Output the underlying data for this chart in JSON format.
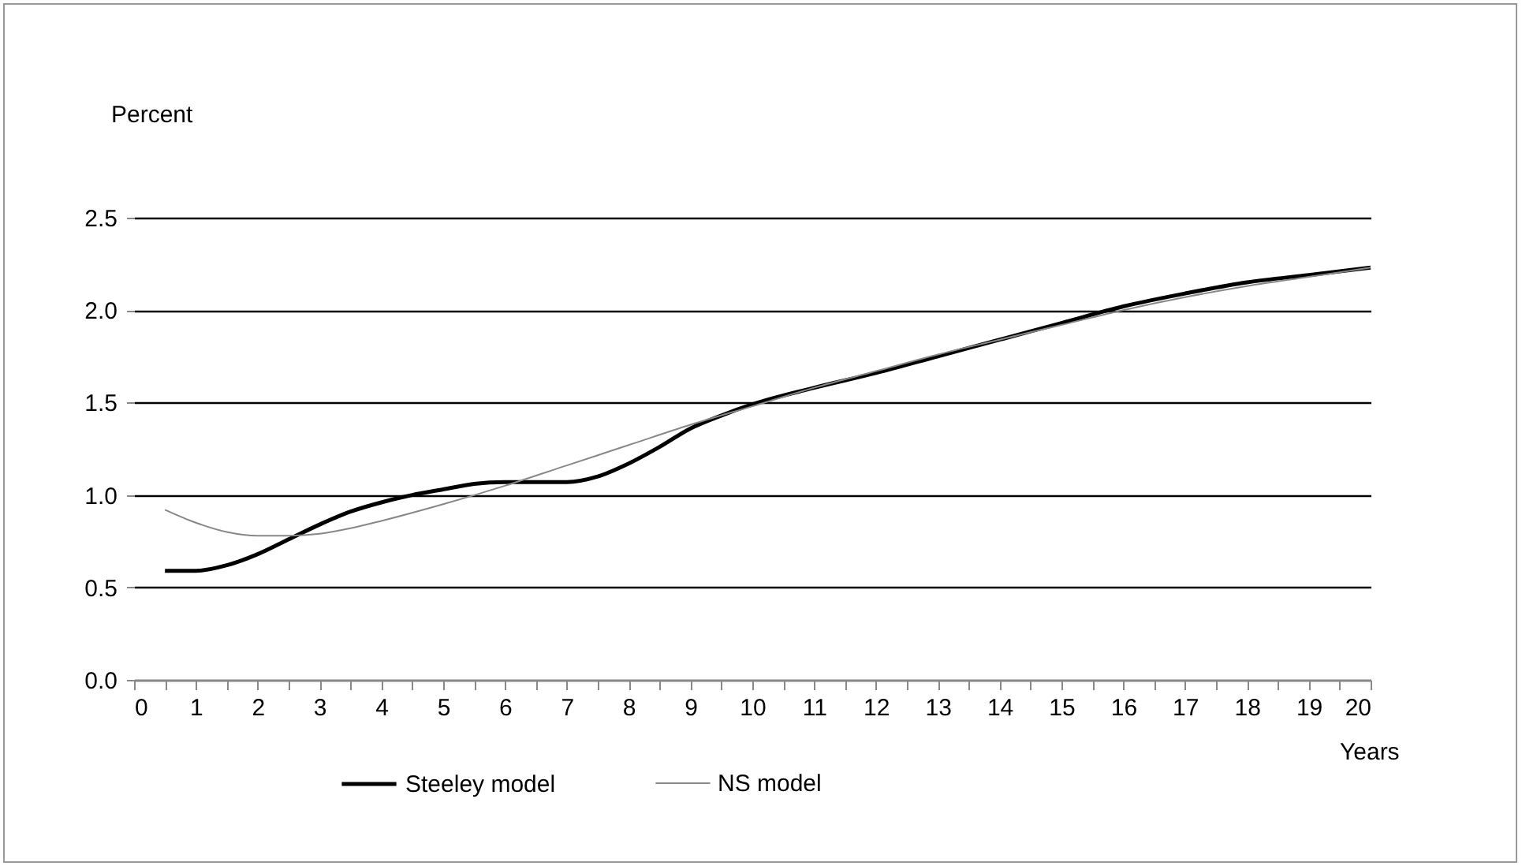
{
  "chart_data": {
    "type": "line",
    "ylabel": "Percent",
    "xlabel": "Years",
    "series": [
      {
        "name": "Steeley model",
        "color": "#000000",
        "x": [
          0.5,
          1,
          1.5,
          2,
          2.5,
          3,
          3.5,
          4,
          4.5,
          5,
          5.5,
          6,
          6.5,
          7,
          7.5,
          8,
          8.5,
          9,
          9.5,
          10,
          11,
          12,
          13,
          14,
          15,
          16,
          17,
          18,
          19,
          20
        ],
        "values": [
          0.59,
          0.59,
          0.62,
          0.68,
          0.76,
          0.84,
          0.91,
          0.96,
          1.0,
          1.03,
          1.06,
          1.07,
          1.07,
          1.07,
          1.1,
          1.17,
          1.26,
          1.36,
          1.43,
          1.49,
          1.58,
          1.66,
          1.75,
          1.84,
          1.93,
          2.02,
          2.09,
          2.15,
          2.19,
          2.23
        ]
      },
      {
        "name": "NS model",
        "color": "#888888",
        "x": [
          0.5,
          1,
          1.5,
          2,
          2.5,
          3,
          3.5,
          4,
          5,
          6,
          7,
          8,
          9,
          10,
          11,
          12,
          13,
          14,
          15,
          16,
          17,
          18,
          19,
          20
        ],
        "values": [
          0.92,
          0.85,
          0.8,
          0.78,
          0.78,
          0.79,
          0.82,
          0.86,
          0.95,
          1.05,
          1.16,
          1.27,
          1.38,
          1.48,
          1.58,
          1.67,
          1.76,
          1.84,
          1.92,
          2.0,
          2.07,
          2.13,
          2.18,
          2.23
        ]
      }
    ],
    "xlim": [
      0,
      20
    ],
    "xticks": [
      0,
      {
        "value": 0.5,
        "label": null
      },
      1,
      {
        "value": 1.5,
        "label": null
      },
      2,
      {
        "value": 2.5,
        "label": null
      },
      3,
      {
        "value": 3.5,
        "label": null
      },
      4,
      {
        "value": 4.5,
        "label": null
      },
      5,
      {
        "value": 5.5,
        "label": null
      },
      6,
      {
        "value": 6.5,
        "label": null
      },
      7,
      {
        "value": 7.5,
        "label": null
      },
      8,
      {
        "value": 8.5,
        "label": null
      },
      9,
      {
        "value": 9.5,
        "label": null
      },
      10,
      {
        "value": 10.5,
        "label": null
      },
      11,
      {
        "value": 11.5,
        "label": null
      },
      12,
      {
        "value": 12.5,
        "label": null
      },
      13,
      {
        "value": 13.5,
        "label": null
      },
      14,
      {
        "value": 14.5,
        "label": null
      },
      15,
      {
        "value": 15.5,
        "label": null
      },
      16,
      {
        "value": 16.5,
        "label": null
      },
      17,
      {
        "value": 17.5,
        "label": null
      },
      18,
      {
        "value": 18.5,
        "label": null
      },
      19,
      {
        "value": 19.5,
        "label": null
      },
      20
    ],
    "ylim": [
      0,
      2.5
    ],
    "yticks": [
      {
        "value": 0,
        "label": "0.0"
      },
      {
        "value": 0.5,
        "label": "0.5"
      },
      {
        "value": 1,
        "label": "1.0"
      },
      {
        "value": 1.5,
        "label": "1.5"
      },
      {
        "value": 2,
        "label": "2.0"
      },
      {
        "value": 2.5,
        "label": "2.5"
      }
    ],
    "grid": "y",
    "legend": "bottom",
    "line_style": "solid",
    "marker": "none"
  }
}
